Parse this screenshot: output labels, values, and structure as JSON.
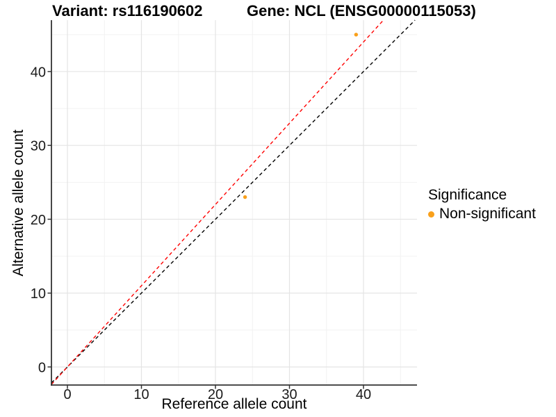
{
  "chart_data": {
    "type": "scatter",
    "title_left": "Variant: rs116190602",
    "title_right": "Gene: NCL (ENSG00000115053)",
    "xlabel": "Reference allele count",
    "ylabel": "Alternative allele count",
    "x_ticks": [
      0,
      10,
      20,
      30,
      40
    ],
    "x_minor_ticks": [
      5,
      15,
      25,
      35,
      45
    ],
    "y_ticks": [
      0,
      10,
      20,
      30,
      40
    ],
    "y_minor_ticks": [
      5,
      15,
      25,
      35,
      45
    ],
    "xlim": [
      -2.16,
      47.23
    ],
    "ylim": [
      -2.45,
      46.96
    ],
    "grid": true,
    "legend_position": "right",
    "points": [
      {
        "x": 24,
        "y": 23,
        "significance": "Non-significant"
      },
      {
        "x": 39,
        "y": 45,
        "significance": "Non-significant"
      }
    ],
    "lines": [
      {
        "name": "identity-line",
        "slope": 1.0,
        "intercept": 0,
        "color": "#000000",
        "style": "dashed"
      },
      {
        "name": "fitted-ratio-line",
        "slope": 1.1,
        "intercept": 0,
        "color": "#FF0000",
        "style": "dashed"
      }
    ],
    "legend": {
      "title": "Significance",
      "items": [
        {
          "label": "Non-significant",
          "color": "#F9A01B"
        }
      ]
    },
    "colors": {
      "point": "#F9A01B",
      "grid_major": "#E4E4E4",
      "grid_minor": "#F2F2F2",
      "axis": "#333333",
      "tick_label": "#1A1A1A",
      "background": "#FFFFFF"
    }
  }
}
